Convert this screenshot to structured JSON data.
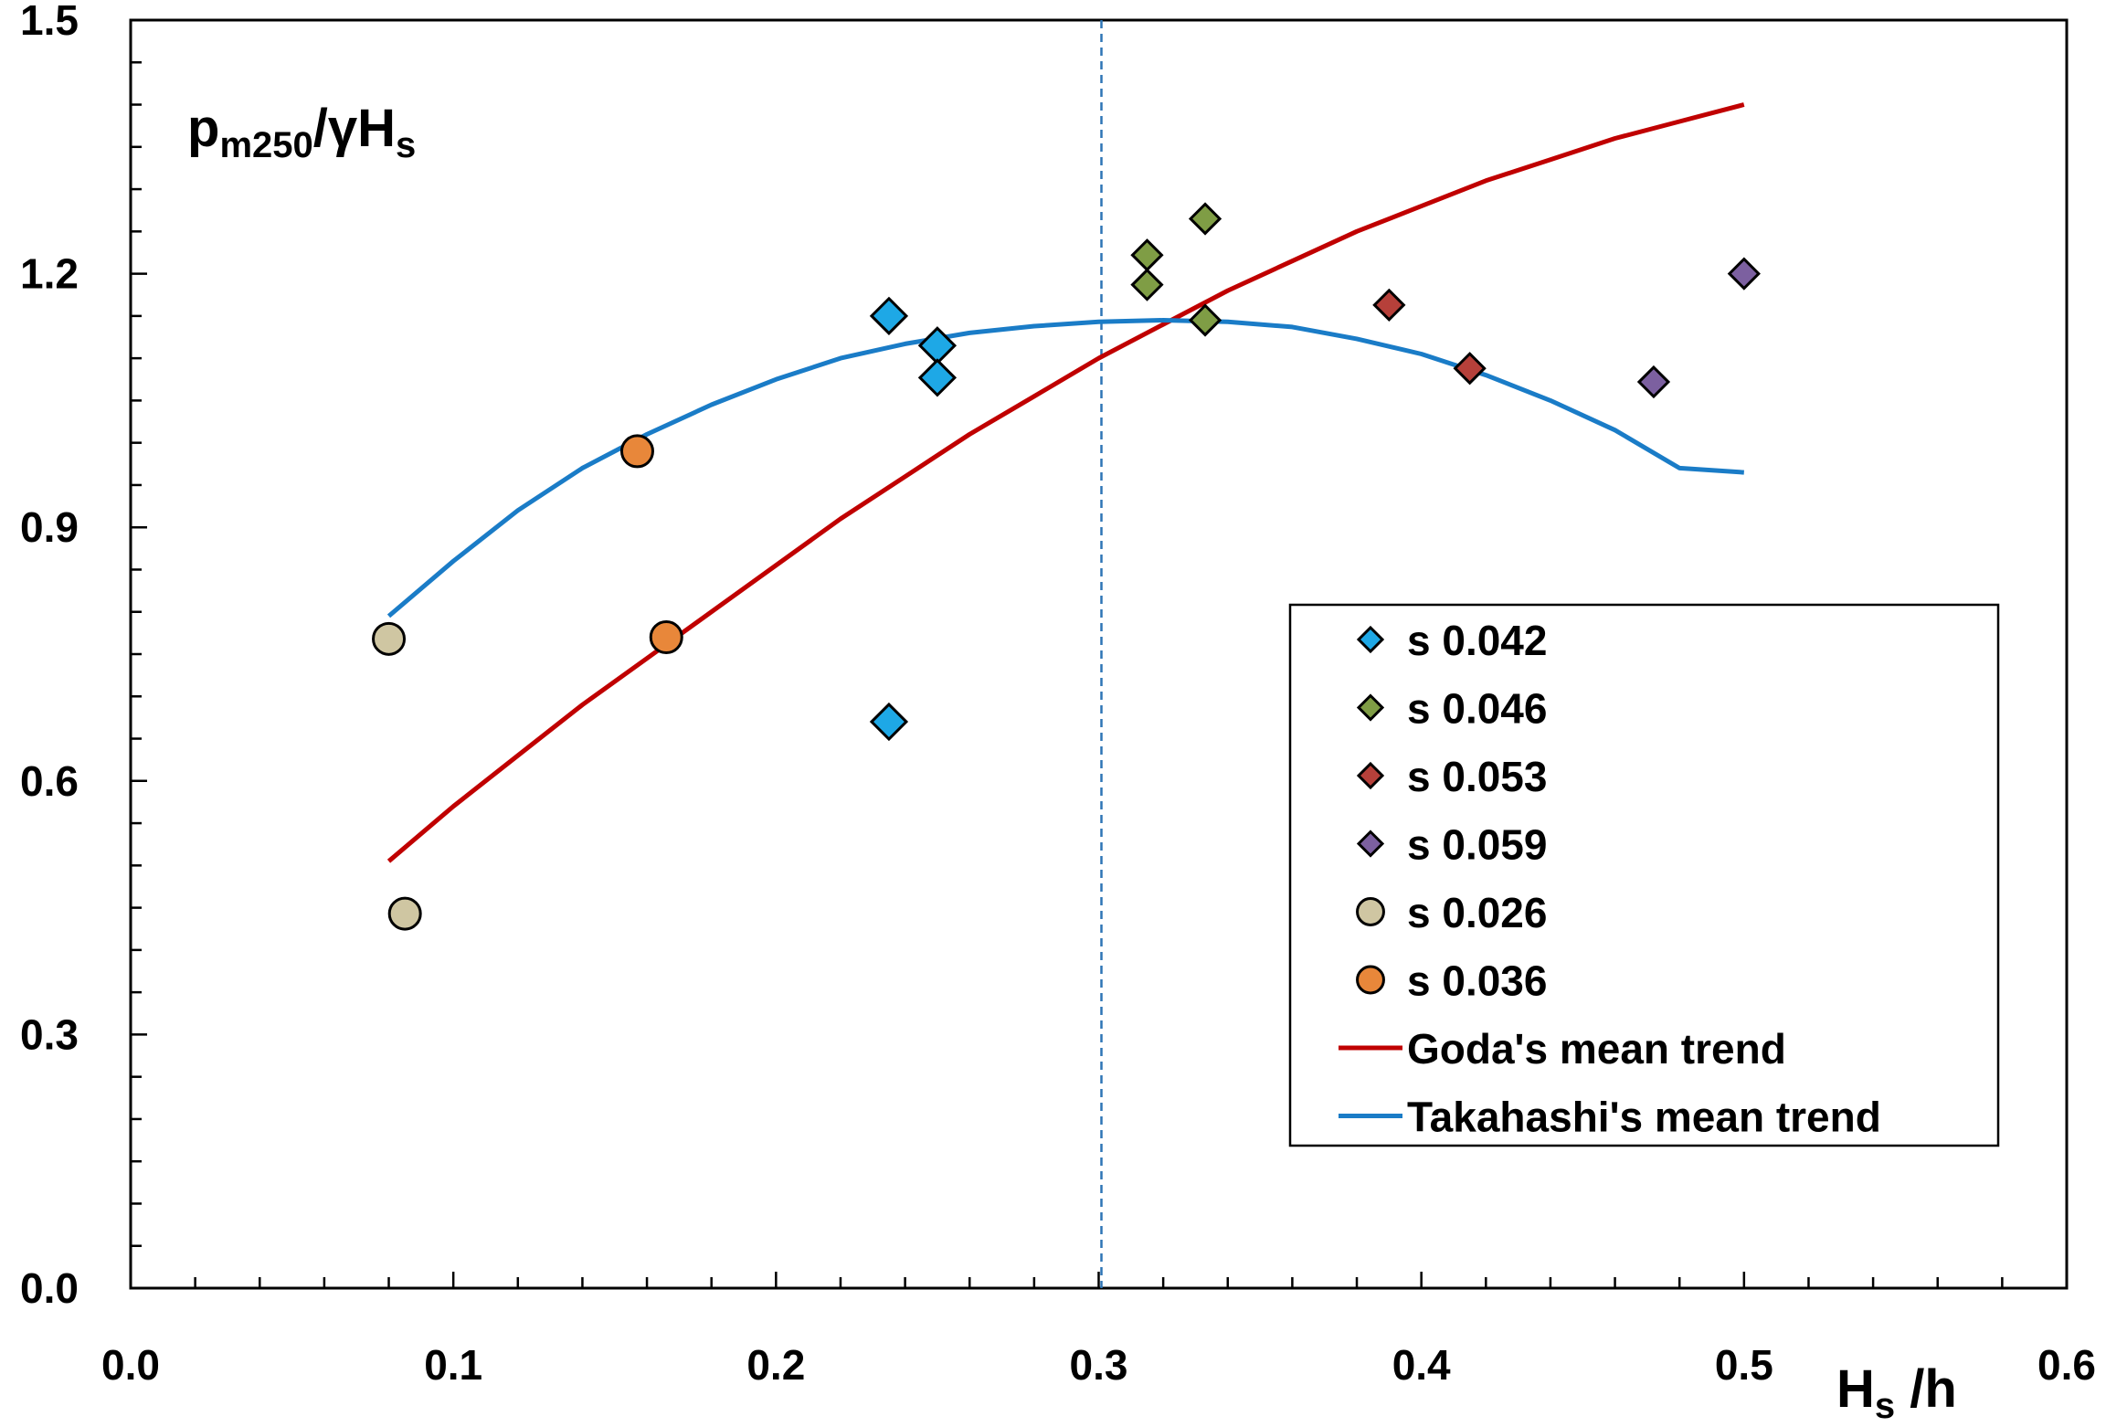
{
  "chart_data": {
    "type": "scatter",
    "title": "",
    "ylabel": {
      "main": "p",
      "sub": "m250",
      "mid": "/γH",
      "sub2": "s"
    },
    "xlabel": {
      "main": "H",
      "sub": "s",
      "tail": " /h"
    },
    "xlim": [
      0.0,
      0.6
    ],
    "ylim": [
      0.0,
      1.5
    ],
    "x_ticks": [
      "0.0",
      "0.1",
      "0.2",
      "0.3",
      "0.4",
      "0.5",
      "0.6"
    ],
    "y_ticks": [
      "0.0",
      "0.3",
      "0.6",
      "0.9",
      "1.2",
      "1.5"
    ],
    "vertical_reference_x": 0.3,
    "legend_position": "right-center",
    "series": [
      {
        "name": "s 0.042",
        "marker": "diamond",
        "color": "#1ea8e6",
        "points": [
          [
            0.235,
            1.15
          ],
          [
            0.25,
            1.115
          ],
          [
            0.25,
            1.077
          ],
          [
            0.235,
            0.67
          ]
        ]
      },
      {
        "name": "s 0.046",
        "marker": "diamond",
        "color": "#7f9d45",
        "points": [
          [
            0.315,
            1.222
          ],
          [
            0.315,
            1.187
          ],
          [
            0.333,
            1.265
          ],
          [
            0.333,
            1.145
          ]
        ]
      },
      {
        "name": "s 0.053",
        "marker": "diamond",
        "color": "#b6403a",
        "points": [
          [
            0.39,
            1.163
          ],
          [
            0.415,
            1.088
          ]
        ]
      },
      {
        "name": "s 0.059",
        "marker": "diamond",
        "color": "#7c60a0",
        "points": [
          [
            0.5,
            1.2
          ],
          [
            0.472,
            1.072
          ]
        ]
      },
      {
        "name": "s 0.026",
        "marker": "circle",
        "color": "#cfc6a2",
        "points": [
          [
            0.08,
            0.768
          ],
          [
            0.085,
            0.443
          ]
        ]
      },
      {
        "name": "s 0.036",
        "marker": "circle",
        "color": "#e8873a",
        "points": [
          [
            0.157,
            0.99
          ],
          [
            0.166,
            0.77
          ]
        ]
      }
    ],
    "lines": [
      {
        "name": "Goda's mean trend",
        "color": "#c00000",
        "x": [
          0.08,
          0.1,
          0.12,
          0.14,
          0.16,
          0.18,
          0.2,
          0.22,
          0.24,
          0.26,
          0.28,
          0.3,
          0.32,
          0.34,
          0.36,
          0.38,
          0.4,
          0.42,
          0.44,
          0.46,
          0.48,
          0.5
        ],
        "y": [
          0.505,
          0.57,
          0.63,
          0.69,
          0.745,
          0.8,
          0.855,
          0.91,
          0.96,
          1.01,
          1.055,
          1.1,
          1.14,
          1.18,
          1.215,
          1.25,
          1.28,
          1.31,
          1.335,
          1.36,
          1.38,
          1.4
        ]
      },
      {
        "name": "Takahashi's mean trend",
        "color": "#1a7cc7",
        "x": [
          0.08,
          0.1,
          0.12,
          0.14,
          0.16,
          0.18,
          0.2,
          0.22,
          0.24,
          0.26,
          0.28,
          0.3,
          0.32,
          0.34,
          0.36,
          0.38,
          0.4,
          0.42,
          0.44,
          0.46,
          0.48,
          0.5
        ],
        "y": [
          0.795,
          0.86,
          0.92,
          0.97,
          1.01,
          1.045,
          1.075,
          1.1,
          1.117,
          1.13,
          1.138,
          1.143,
          1.145,
          1.143,
          1.137,
          1.123,
          1.105,
          1.08,
          1.05,
          1.015,
          0.97,
          0.965
        ]
      }
    ]
  }
}
